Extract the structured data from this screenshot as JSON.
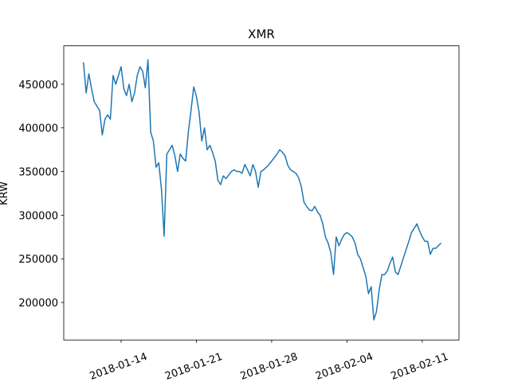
{
  "chart_data": {
    "type": "line",
    "title": "XMR",
    "y_label": "KRW",
    "color": "#1f77b4",
    "grid": false,
    "x": [
      "2018-01-10 12:00",
      "2018-01-10 18:00",
      "2018-01-11 00:00",
      "2018-01-11 06:00",
      "2018-01-11 12:00",
      "2018-01-11 18:00",
      "2018-01-12 00:00",
      "2018-01-12 06:00",
      "2018-01-12 12:00",
      "2018-01-12 18:00",
      "2018-01-13 00:00",
      "2018-01-13 06:00",
      "2018-01-13 12:00",
      "2018-01-13 18:00",
      "2018-01-14 00:00",
      "2018-01-14 06:00",
      "2018-01-14 12:00",
      "2018-01-14 18:00",
      "2018-01-15 00:00",
      "2018-01-15 06:00",
      "2018-01-15 12:00",
      "2018-01-15 18:00",
      "2018-01-16 00:00",
      "2018-01-16 06:00",
      "2018-01-16 12:00",
      "2018-01-16 18:00",
      "2018-01-17 00:00",
      "2018-01-17 06:00",
      "2018-01-17 12:00",
      "2018-01-17 18:00",
      "2018-01-18 00:00",
      "2018-01-18 06:00",
      "2018-01-18 12:00",
      "2018-01-18 18:00",
      "2018-01-19 00:00",
      "2018-01-19 06:00",
      "2018-01-19 12:00",
      "2018-01-19 18:00",
      "2018-01-20 00:00",
      "2018-01-20 06:00",
      "2018-01-20 12:00",
      "2018-01-20 18:00",
      "2018-01-21 00:00",
      "2018-01-21 06:00",
      "2018-01-21 12:00",
      "2018-01-21 18:00",
      "2018-01-22 00:00",
      "2018-01-22 06:00",
      "2018-01-22 12:00",
      "2018-01-22 18:00",
      "2018-01-23 00:00",
      "2018-01-23 06:00",
      "2018-01-23 12:00",
      "2018-01-23 18:00",
      "2018-01-24 00:00",
      "2018-01-24 06:00",
      "2018-01-24 12:00",
      "2018-01-24 18:00",
      "2018-01-25 00:00",
      "2018-01-25 06:00",
      "2018-01-25 12:00",
      "2018-01-25 18:00",
      "2018-01-26 00:00",
      "2018-01-26 06:00",
      "2018-01-26 12:00",
      "2018-01-26 18:00",
      "2018-01-27 00:00",
      "2018-01-27 06:00",
      "2018-01-27 12:00",
      "2018-01-27 18:00",
      "2018-01-28 00:00",
      "2018-01-28 06:00",
      "2018-01-28 12:00",
      "2018-01-28 18:00",
      "2018-01-29 00:00",
      "2018-01-29 06:00",
      "2018-01-29 12:00",
      "2018-01-29 18:00",
      "2018-01-30 00:00",
      "2018-01-30 06:00",
      "2018-01-30 12:00",
      "2018-01-30 18:00",
      "2018-01-31 00:00",
      "2018-01-31 06:00",
      "2018-01-31 12:00",
      "2018-01-31 18:00",
      "2018-02-01 00:00",
      "2018-02-01 06:00",
      "2018-02-01 12:00",
      "2018-02-01 18:00",
      "2018-02-02 00:00",
      "2018-02-02 06:00",
      "2018-02-02 12:00",
      "2018-02-02 18:00",
      "2018-02-03 00:00",
      "2018-02-03 06:00",
      "2018-02-03 12:00",
      "2018-02-03 18:00",
      "2018-02-04 00:00",
      "2018-02-04 06:00",
      "2018-02-04 12:00",
      "2018-02-04 18:00",
      "2018-02-05 00:00",
      "2018-02-05 06:00",
      "2018-02-05 12:00",
      "2018-02-05 18:00",
      "2018-02-06 00:00",
      "2018-02-06 06:00",
      "2018-02-06 12:00",
      "2018-02-06 18:00",
      "2018-02-07 00:00",
      "2018-02-07 06:00",
      "2018-02-07 12:00",
      "2018-02-07 18:00",
      "2018-02-08 00:00",
      "2018-02-08 06:00",
      "2018-02-08 12:00",
      "2018-02-08 18:00",
      "2018-02-09 18:00",
      "2018-02-10 00:00",
      "2018-02-10 06:00",
      "2018-02-10 12:00",
      "2018-02-10 18:00",
      "2018-02-11 00:00",
      "2018-02-11 06:00",
      "2018-02-11 12:00",
      "2018-02-11 18:00",
      "2018-02-12 00:00",
      "2018-02-12 06:00",
      "2018-02-12 12:00",
      "2018-02-12 18:00"
    ],
    "values": [
      475000,
      440000,
      462000,
      445000,
      430000,
      425000,
      420000,
      392000,
      410000,
      415000,
      410000,
      460000,
      450000,
      460000,
      470000,
      445000,
      437000,
      450000,
      430000,
      440000,
      460000,
      470000,
      465000,
      446000,
      478000,
      395000,
      385000,
      355000,
      360000,
      330000,
      276000,
      370000,
      375000,
      380000,
      368000,
      350000,
      370000,
      365000,
      362000,
      395000,
      420000,
      447000,
      436000,
      418000,
      385000,
      400000,
      375000,
      380000,
      372000,
      362000,
      340000,
      335000,
      345000,
      342000,
      346000,
      350000,
      352000,
      350000,
      350000,
      348000,
      358000,
      352000,
      345000,
      358000,
      350000,
      332000,
      350000,
      352000,
      355000,
      358000,
      362000,
      366000,
      370000,
      375000,
      372000,
      368000,
      357000,
      352000,
      350000,
      348000,
      343000,
      333000,
      315000,
      310000,
      306000,
      305000,
      310000,
      304000,
      300000,
      290000,
      275000,
      268000,
      257000,
      232000,
      275000,
      265000,
      272000,
      278000,
      280000,
      278000,
      275000,
      268000,
      255000,
      250000,
      240000,
      230000,
      210000,
      218000,
      180000,
      190000,
      215000,
      232000,
      232000,
      236000,
      245000,
      252000,
      235000,
      232000,
      270000,
      280000,
      285000,
      290000,
      282000,
      275000,
      270000,
      270000,
      255000,
      262000,
      262000,
      265000,
      268000
    ],
    "xlim": [
      "2018-01-08 16:00",
      "2018-02-14 10:00"
    ],
    "xticks": [
      "2018-01-14",
      "2018-01-21",
      "2018-01-28",
      "2018-02-04",
      "2018-02-11"
    ],
    "ylim": [
      157000,
      494000
    ],
    "yticks": [
      200000,
      250000,
      300000,
      350000,
      400000,
      450000
    ]
  }
}
